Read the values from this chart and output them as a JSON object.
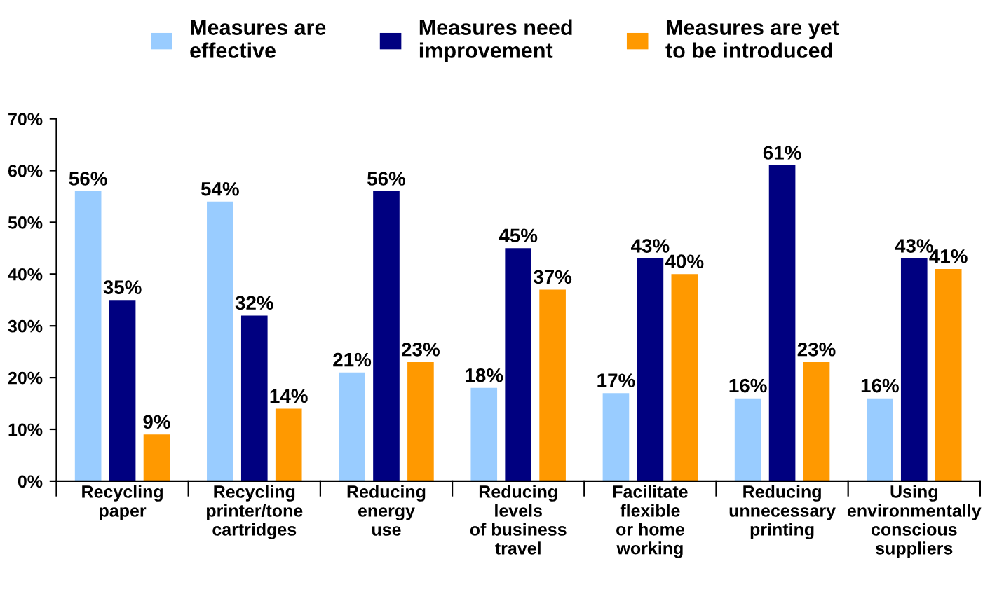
{
  "chart_data": {
    "type": "bar",
    "categories": [
      "Recycling\npaper",
      "Recycling\nprinter/tone\ncartridges",
      "Reducing\nenergy\nuse",
      "Reducing\nlevels\nof business\ntravel",
      "Facilitate\nflexible\nor home\nworking",
      "Reducing\nunnecessary\nprinting",
      "Using\nenvironmentally\nconscious\nsuppliers"
    ],
    "series": [
      {
        "name": "Measures are\neffective",
        "color": "#99ccff",
        "values": [
          56,
          54,
          21,
          18,
          17,
          16,
          16
        ],
        "value_labels": [
          "56%",
          "54%",
          "21%",
          "18%",
          "17%",
          "16%",
          "16%"
        ]
      },
      {
        "name": "Measures need\nimprovement",
        "color": "#000080",
        "values": [
          35,
          32,
          56,
          45,
          43,
          61,
          43
        ],
        "value_labels": [
          "35%",
          "32%",
          "56%",
          "45%",
          "43%",
          "61%",
          "43%"
        ]
      },
      {
        "name": "Measures are yet\nto be introduced",
        "color": "#ff9900",
        "values": [
          9,
          14,
          23,
          37,
          40,
          23,
          41
        ],
        "value_labels": [
          "9%",
          "14%",
          "23%",
          "37%",
          "40%",
          "23%",
          "41%"
        ]
      }
    ],
    "ylim": [
      0,
      70
    ],
    "yticks": [
      {
        "value": 0,
        "label": "0%"
      },
      {
        "value": 10,
        "label": "10%"
      },
      {
        "value": 20,
        "label": "20%"
      },
      {
        "value": 30,
        "label": "30%"
      },
      {
        "value": 40,
        "label": "40%"
      },
      {
        "value": 50,
        "label": "50%"
      },
      {
        "value": 60,
        "label": "60%"
      },
      {
        "value": 70,
        "label": "70%"
      }
    ],
    "legend": "top",
    "grid": false
  }
}
